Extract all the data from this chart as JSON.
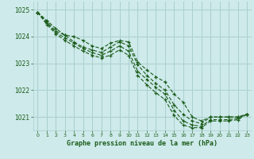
{
  "title": "Graphe pression niveau de la mer (hPa)",
  "bg_color": "#ceeaea",
  "grid_color": "#aacfcf",
  "line_color": "#1a5c1a",
  "xlim": [
    -0.5,
    23.5
  ],
  "ylim": [
    1020.5,
    1025.3
  ],
  "yticks": [
    1021,
    1022,
    1023,
    1024,
    1025
  ],
  "xticks": [
    0,
    1,
    2,
    3,
    4,
    5,
    6,
    7,
    8,
    9,
    10,
    11,
    12,
    13,
    14,
    15,
    16,
    17,
    18,
    19,
    20,
    21,
    22,
    23
  ],
  "series": [
    [
      1024.9,
      1024.6,
      1024.3,
      1024.05,
      1024.0,
      1023.85,
      1023.65,
      1023.55,
      1023.75,
      1023.85,
      1023.8,
      1023.05,
      1022.75,
      1022.5,
      1022.3,
      1021.85,
      1021.55,
      1021.0,
      1020.85,
      1021.0,
      1021.0,
      1021.0,
      1021.0,
      1021.1
    ],
    [
      1024.9,
      1024.55,
      1024.2,
      1024.05,
      1023.8,
      1023.6,
      1023.5,
      1023.4,
      1023.6,
      1023.8,
      1023.65,
      1022.95,
      1022.55,
      1022.25,
      1022.0,
      1021.45,
      1021.1,
      1020.85,
      1020.75,
      1021.0,
      1021.0,
      1021.0,
      1021.0,
      1021.1
    ],
    [
      1024.9,
      1024.5,
      1024.15,
      1023.95,
      1023.75,
      1023.55,
      1023.4,
      1023.3,
      1023.45,
      1023.65,
      1023.45,
      1022.7,
      1022.4,
      1022.1,
      1021.85,
      1021.25,
      1020.85,
      1020.7,
      1020.65,
      1020.9,
      1020.9,
      1020.9,
      1020.95,
      1021.1
    ],
    [
      1024.9,
      1024.45,
      1024.1,
      1023.85,
      1023.65,
      1023.45,
      1023.3,
      1023.2,
      1023.3,
      1023.5,
      1023.3,
      1022.55,
      1022.2,
      1021.9,
      1021.65,
      1021.05,
      1020.7,
      1020.6,
      1020.6,
      1020.85,
      1020.85,
      1020.85,
      1020.9,
      1021.1
    ]
  ]
}
